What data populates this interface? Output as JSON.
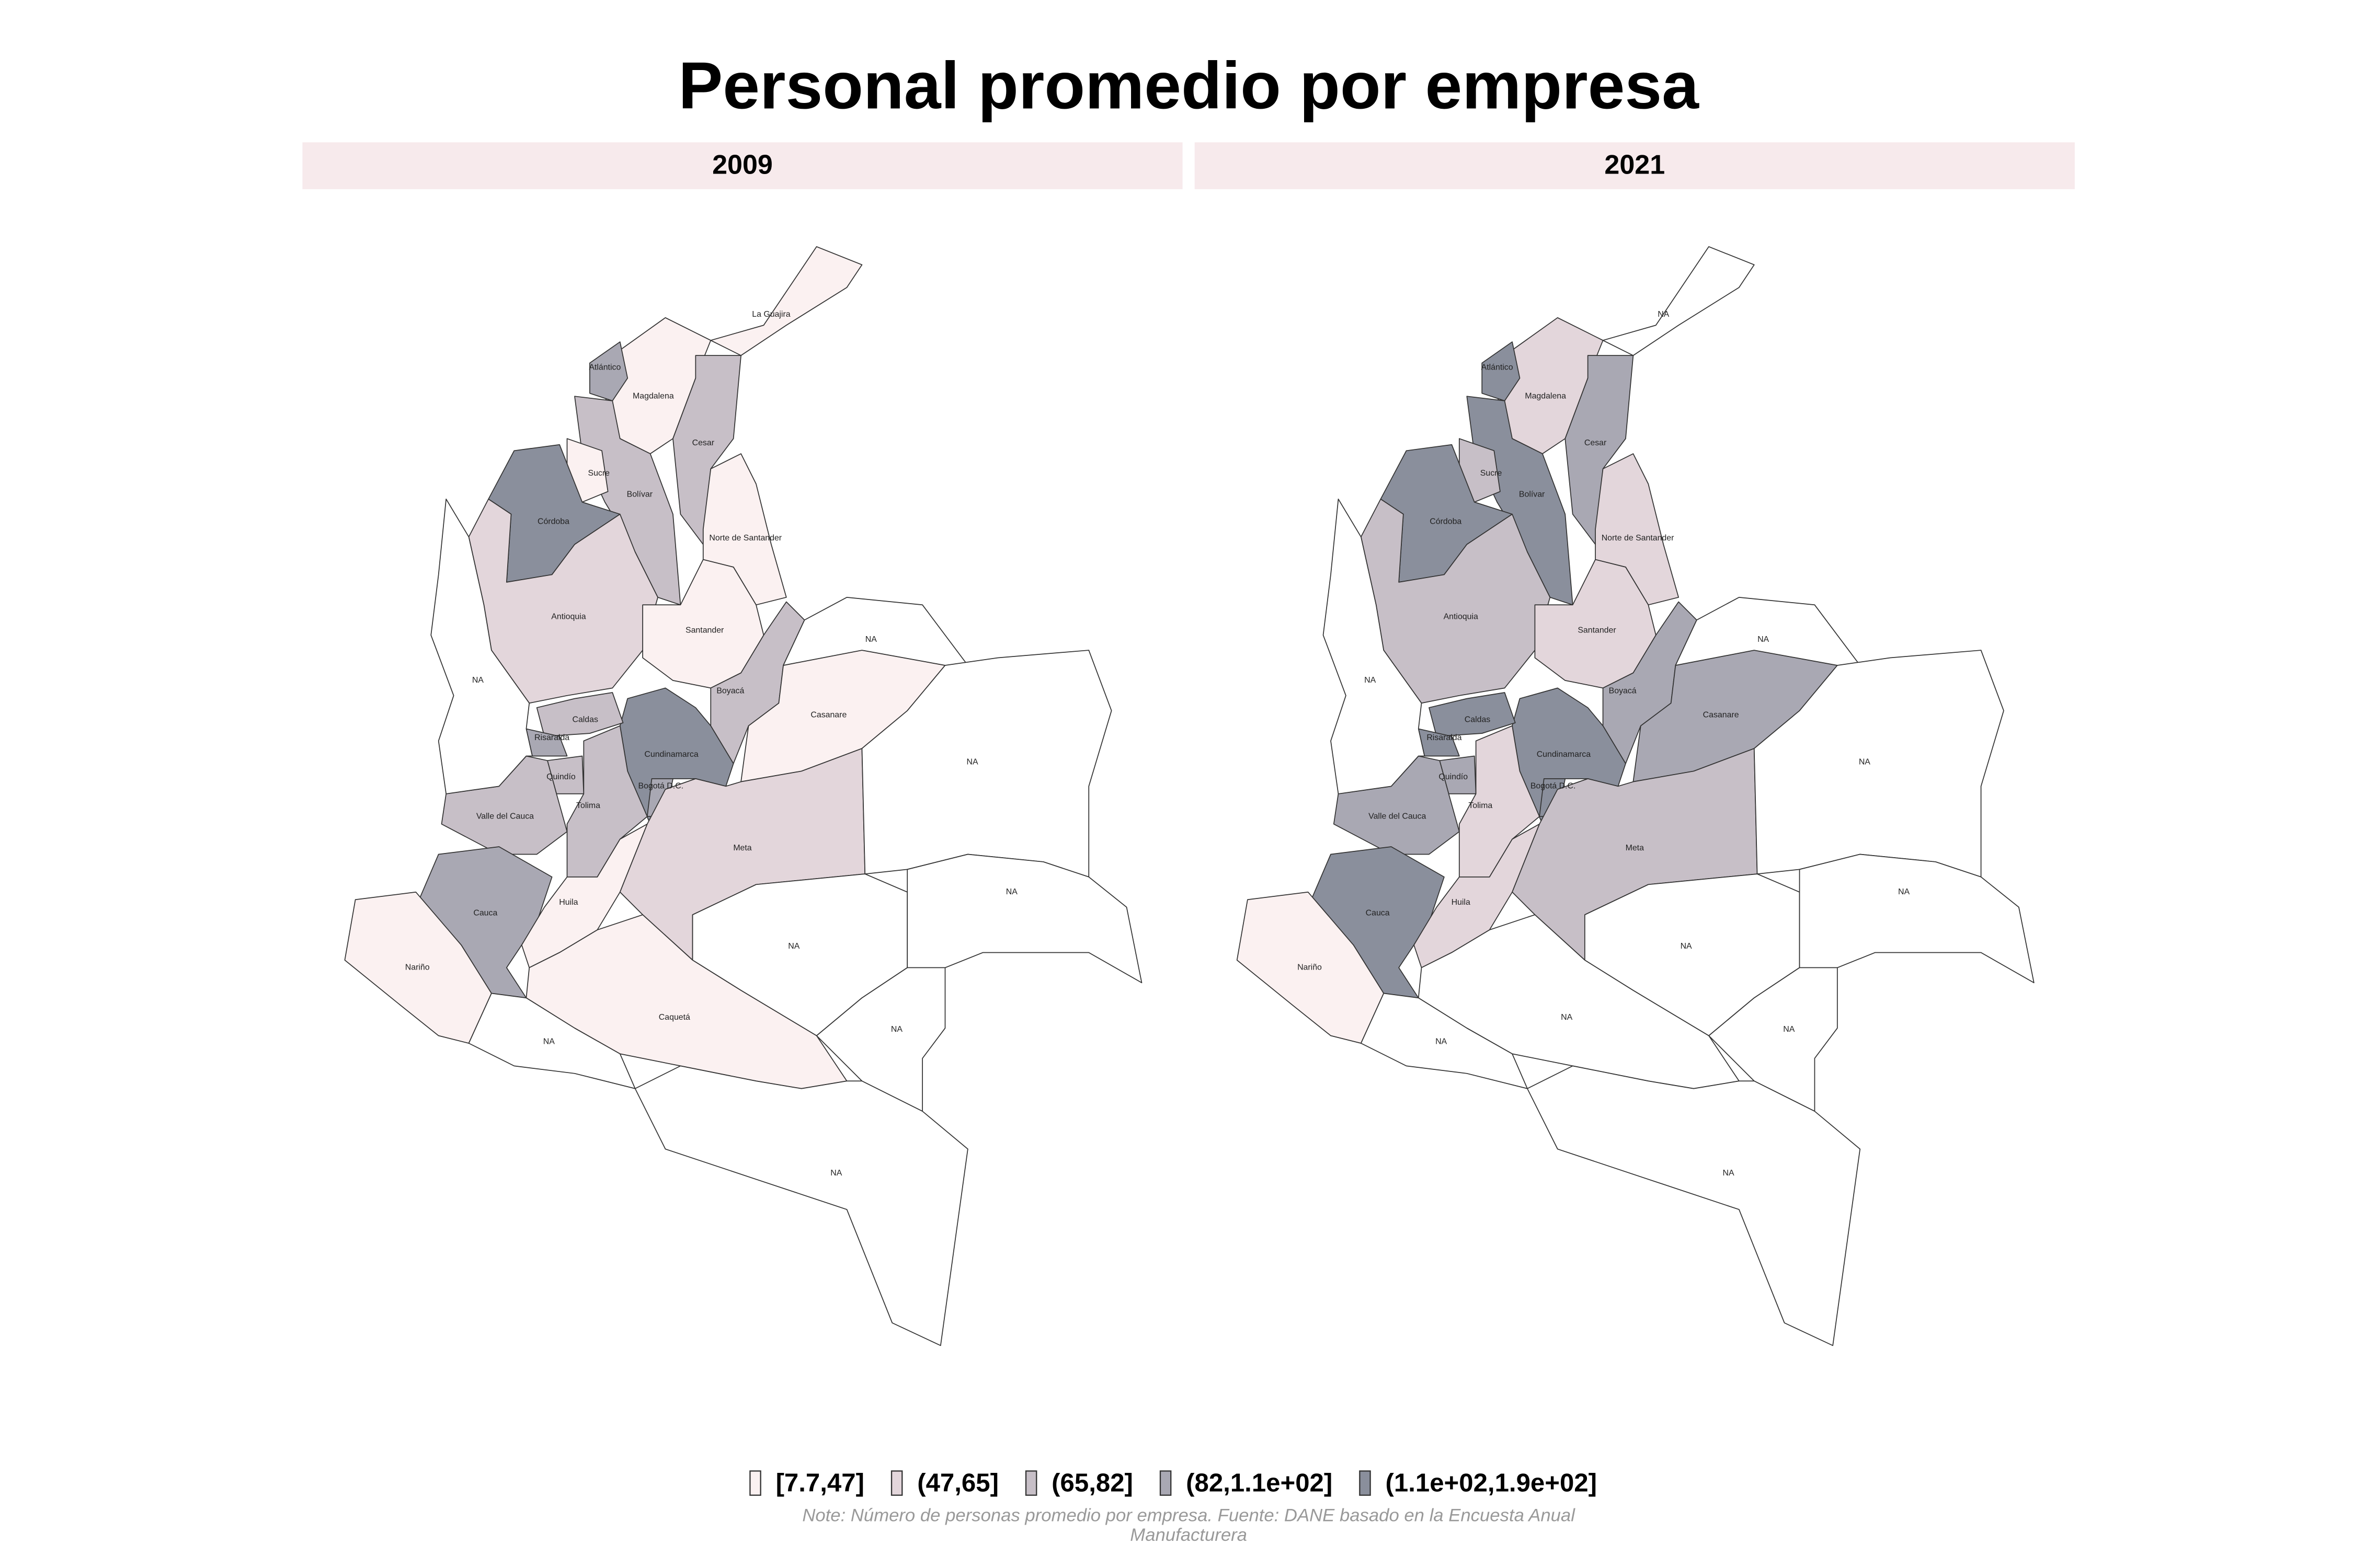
{
  "title": "Personal promedio por empresa",
  "legend": [
    {
      "label": "[7.7,47]",
      "color": "#fbf1f1"
    },
    {
      "label": "(47,65]",
      "color": "#e3d6db"
    },
    {
      "label": "(65,82]",
      "color": "#c7bfc7"
    },
    {
      "label": "(82,1.1e+02]",
      "color": "#a9a8b3"
    },
    {
      "label": "(1.1e+02,1.9e+02]",
      "color": "#8a8f9c"
    }
  ],
  "na_color": "#ffffff",
  "note": [
    "Note: Número de personas promedio por empresa. Fuente: DANE basado en la Encuesta Anual",
    "Manufacturera"
  ],
  "panels": [
    {
      "label": "2009",
      "regions": [
        {
          "label": "La Guajira",
          "class": "[7.7,47]"
        },
        {
          "label": "Magdalena",
          "class": "[7.7,47]"
        },
        {
          "label": "Atlántico",
          "class": "(82,1.1e+02]"
        },
        {
          "label": "Cesar",
          "class": "(65,82]"
        },
        {
          "label": "Bolívar",
          "class": "(65,82]"
        },
        {
          "label": "Sucre",
          "class": "[7.7,47]"
        },
        {
          "label": "Córdoba",
          "class": "(1.1e+02,1.9e+02]"
        },
        {
          "label": "Norte de Santander",
          "class": "[7.7,47]"
        },
        {
          "label": "Antioquia",
          "class": "(47,65]"
        },
        {
          "label": "Santander",
          "class": "[7.7,47]"
        },
        {
          "label": "Boyacá",
          "class": "(65,82]"
        },
        {
          "label": "Casanare",
          "class": "[7.7,47]"
        },
        {
          "label": "Cundinamarca",
          "class": "(1.1e+02,1.9e+02]"
        },
        {
          "label": "Bogotá D.C.",
          "class": "(82,1.1e+02]"
        },
        {
          "label": "Caldas",
          "class": "(65,82]"
        },
        {
          "label": "Risaralda",
          "class": "(82,1.1e+02]"
        },
        {
          "label": "Quindío",
          "class": "(65,82]"
        },
        {
          "label": "Tolima",
          "class": "(65,82]"
        },
        {
          "label": "Valle del Cauca",
          "class": "(65,82]"
        },
        {
          "label": "Cauca",
          "class": "(82,1.1e+02]"
        },
        {
          "label": "Nariño",
          "class": "[7.7,47]"
        },
        {
          "label": "Huila",
          "class": "[7.7,47]"
        },
        {
          "label": "Meta",
          "class": "(47,65]"
        },
        {
          "label": "Caquetá",
          "class": "[7.7,47]"
        },
        {
          "label": "NA",
          "class": null
        },
        {
          "label": "NA",
          "class": null
        },
        {
          "label": "NA",
          "class": null
        },
        {
          "label": "NA",
          "class": null
        },
        {
          "label": "NA",
          "class": null
        },
        {
          "label": "NA",
          "class": null
        },
        {
          "label": "NA",
          "class": null
        },
        {
          "label": "NA",
          "class": null
        }
      ]
    },
    {
      "label": "2021",
      "regions": [
        {
          "label": "NA",
          "class": null
        },
        {
          "label": "Magdalena",
          "class": "(47,65]"
        },
        {
          "label": "Atlántico",
          "class": "(1.1e+02,1.9e+02]"
        },
        {
          "label": "Cesar",
          "class": "(82,1.1e+02]"
        },
        {
          "label": "Bolívar",
          "class": "(1.1e+02,1.9e+02]"
        },
        {
          "label": "Sucre",
          "class": "(65,82]"
        },
        {
          "label": "Córdoba",
          "class": "(1.1e+02,1.9e+02]"
        },
        {
          "label": "Norte de Santander",
          "class": "(47,65]"
        },
        {
          "label": "Antioquia",
          "class": "(65,82]"
        },
        {
          "label": "Santander",
          "class": "(47,65]"
        },
        {
          "label": "Boyacá",
          "class": "(82,1.1e+02]"
        },
        {
          "label": "Casanare",
          "class": "(82,1.1e+02]"
        },
        {
          "label": "Cundinamarca",
          "class": "(1.1e+02,1.9e+02]"
        },
        {
          "label": "Bogotá D.C.",
          "class": "(1.1e+02,1.9e+02]"
        },
        {
          "label": "Caldas",
          "class": "(1.1e+02,1.9e+02]"
        },
        {
          "label": "Risaralda",
          "class": "(1.1e+02,1.9e+02]"
        },
        {
          "label": "Quindío",
          "class": "(82,1.1e+02]"
        },
        {
          "label": "Tolima",
          "class": "(47,65]"
        },
        {
          "label": "Valle del Cauca",
          "class": "(82,1.1e+02]"
        },
        {
          "label": "Cauca",
          "class": "(1.1e+02,1.9e+02]"
        },
        {
          "label": "Nariño",
          "class": "[7.7,47]"
        },
        {
          "label": "Huila",
          "class": "(47,65]"
        },
        {
          "label": "Meta",
          "class": "(65,82]"
        },
        {
          "label": "NA",
          "class": null
        },
        {
          "label": "NA",
          "class": null
        },
        {
          "label": "NA",
          "class": null
        },
        {
          "label": "NA",
          "class": null
        },
        {
          "label": "NA",
          "class": null
        },
        {
          "label": "NA",
          "class": null
        },
        {
          "label": "NA",
          "class": null
        },
        {
          "label": "NA",
          "class": null
        },
        {
          "label": "NA",
          "class": null
        }
      ]
    }
  ]
}
